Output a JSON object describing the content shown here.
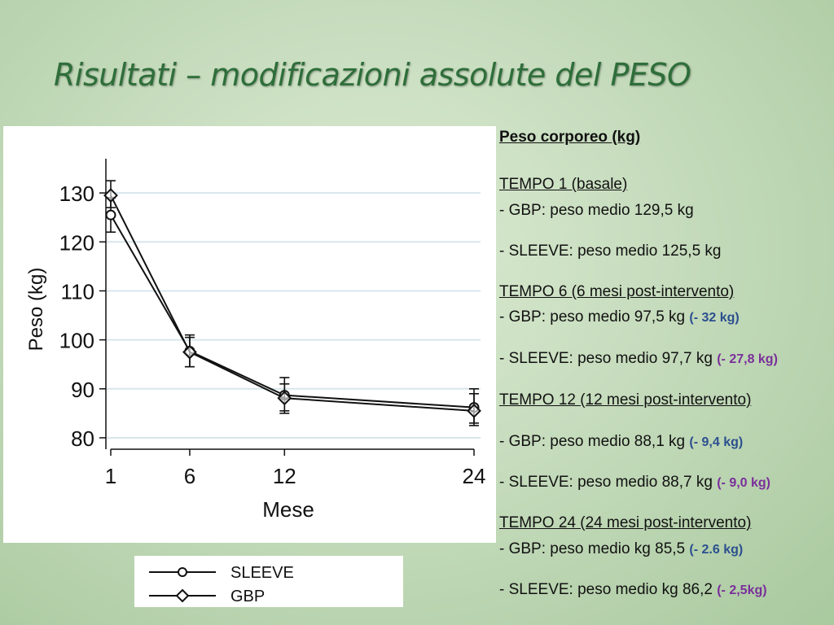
{
  "title": "Risultati – modificazioni assolute del PESO",
  "chart_data": {
    "type": "line",
    "xlabel": "Mese",
    "ylabel": "Peso (kg)",
    "x": [
      1,
      6,
      12,
      24
    ],
    "x_ticks": [
      "1",
      "6",
      "12",
      "24"
    ],
    "y_ticks": [
      "80",
      "90",
      "100",
      "110",
      "120",
      "130"
    ],
    "ylim": [
      78,
      135
    ],
    "grid": "horizontal",
    "series": [
      {
        "name": "SLEEVE",
        "marker": "circle",
        "values": [
          125.5,
          97.7,
          88.7,
          86.2
        ],
        "err_low": [
          122,
          94.5,
          85,
          82.5
        ],
        "err_high": [
          129,
          101,
          92.3,
          90
        ]
      },
      {
        "name": "GBP",
        "marker": "diamond",
        "values": [
          129.5,
          97.5,
          88.1,
          85.5
        ],
        "err_low": [
          127,
          94.5,
          85.5,
          83
        ],
        "err_high": [
          132.5,
          100.5,
          91,
          89
        ]
      }
    ]
  },
  "legend": {
    "items": [
      "SLEEVE",
      "GBP"
    ]
  },
  "notes": {
    "heading": "Peso corporeo (kg)",
    "t1_title": "TEMPO 1 (basale)",
    "t1_gbp": "- GBP: peso medio 129,5 kg",
    "t1_sleeve": "- SLEEVE: peso medio 125,5 kg",
    "t6_title": "TEMPO 6 (6 mesi post-intervento)",
    "t6_gbp": "- GBP: peso medio 97,5 kg ",
    "t6_gbp_diff": "(- 32 kg)",
    "t6_sleeve": "- SLEEVE: peso medio 97,7 kg ",
    "t6_sleeve_diff": "(- 27,8 kg)",
    "t12_title": "TEMPO 12 (12 mesi post-intervento)",
    "t12_gbp": "- GBP: peso medio 88,1 kg ",
    "t12_gbp_diff": "(- 9,4 kg)",
    "t12_sleeve": "- SLEEVE: peso medio 88,7 kg ",
    "t12_sleeve_diff": "(- 9,0 kg)",
    "t24_title": "TEMPO 24 (24 mesi post-intervento)",
    "t24_gbp": "- GBP: peso medio  kg 85,5 ",
    "t24_gbp_diff": "(- 2.6 kg)",
    "t24_sleeve": "- SLEEVE: peso medio kg 86,2 ",
    "t24_sleeve_diff": "(- 2,5kg)"
  },
  "colors": {
    "title": "#2e6e3a",
    "diff_blue": "#2c4f8f",
    "diff_purple": "#7a2f9a",
    "grid": "#d8e6ec"
  }
}
